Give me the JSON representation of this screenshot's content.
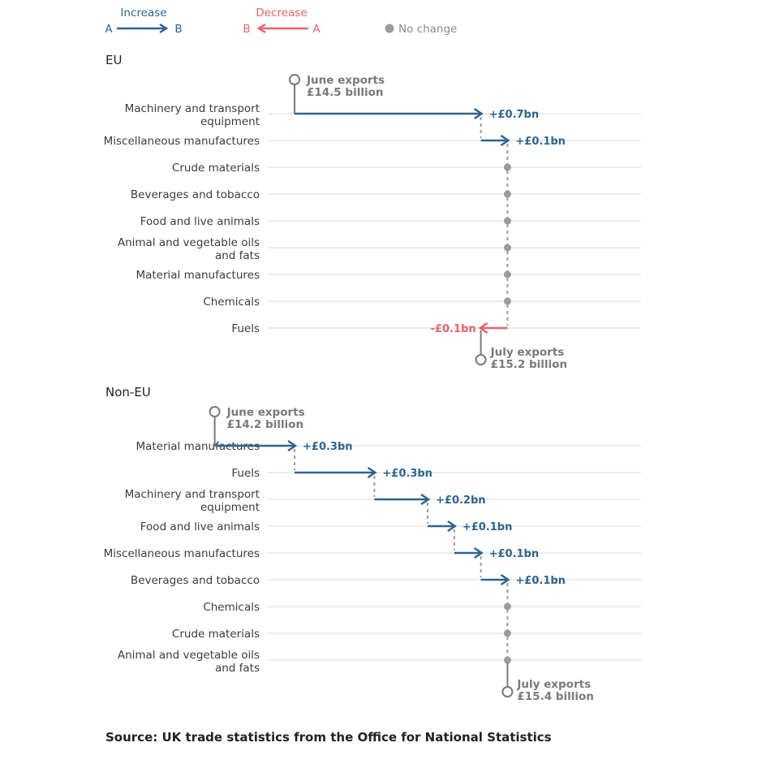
{
  "colors": {
    "increase": "#2e6590",
    "decrease": "#e8636c",
    "no_change": "#9b9b9b",
    "grid": "#d9d9d9",
    "connector": "#9b9b9b",
    "endpoint": "#7a7a7a"
  },
  "legend": {
    "increase": {
      "label": "Increase",
      "from": "A",
      "to": "B"
    },
    "decrease": {
      "label": "Decrease",
      "from": "B",
      "to": "A"
    },
    "no_change": {
      "label": "No change"
    }
  },
  "source": "Source: UK trade statistics from the Office for National Statistics",
  "chart_data": [
    {
      "type": "waterfall",
      "title": "EU",
      "x_range_bn": [
        13.0,
        17.5
      ],
      "start": {
        "line1": "June exports",
        "line2": "£14.5 billion",
        "value_bn": 14.5
      },
      "end": {
        "line1": "July exports",
        "line2": "£15.2 billion",
        "value_bn": 15.2
      },
      "rows": [
        {
          "label": [
            "Machinery and transport",
            "equipment"
          ],
          "change_bn": 0.7,
          "display": "+£0.7bn"
        },
        {
          "label": [
            "Miscellaneous manufactures"
          ],
          "change_bn": 0.1,
          "display": "+£0.1bn"
        },
        {
          "label": [
            "Crude materials"
          ],
          "change_bn": 0,
          "display": ""
        },
        {
          "label": [
            "Beverages and tobacco"
          ],
          "change_bn": 0,
          "display": ""
        },
        {
          "label": [
            "Food and live animals"
          ],
          "change_bn": 0,
          "display": ""
        },
        {
          "label": [
            "Animal and vegetable oils",
            "and fats"
          ],
          "change_bn": 0,
          "display": ""
        },
        {
          "label": [
            "Material manufactures"
          ],
          "change_bn": 0,
          "display": ""
        },
        {
          "label": [
            "Chemicals"
          ],
          "change_bn": 0,
          "display": ""
        },
        {
          "label": [
            "Fuels"
          ],
          "change_bn": -0.1,
          "display": "-£0.1bn"
        }
      ]
    },
    {
      "type": "waterfall",
      "title": "Non-EU",
      "x_range_bn": [
        13.0,
        17.5
      ],
      "start": {
        "line1": "June exports",
        "line2": "£14.2 billion",
        "value_bn": 14.2
      },
      "end": {
        "line1": "July exports",
        "line2": "£15.4 billion",
        "value_bn": 15.4
      },
      "rows": [
        {
          "label": [
            "Material manufactures"
          ],
          "change_bn": 0.3,
          "display": "+£0.3bn"
        },
        {
          "label": [
            "Fuels"
          ],
          "change_bn": 0.3,
          "display": "+£0.3bn"
        },
        {
          "label": [
            "Machinery and transport",
            "equipment"
          ],
          "change_bn": 0.2,
          "display": "+£0.2bn"
        },
        {
          "label": [
            "Food and live animals"
          ],
          "change_bn": 0.1,
          "display": "+£0.1bn"
        },
        {
          "label": [
            "Miscellaneous manufactures"
          ],
          "change_bn": 0.1,
          "display": "+£0.1bn"
        },
        {
          "label": [
            "Beverages and tobacco"
          ],
          "change_bn": 0.1,
          "display": "+£0.1bn"
        },
        {
          "label": [
            "Chemicals"
          ],
          "change_bn": 0,
          "display": ""
        },
        {
          "label": [
            "Crude materials"
          ],
          "change_bn": 0,
          "display": ""
        },
        {
          "label": [
            "Animal and vegetable oils",
            "and fats"
          ],
          "change_bn": 0,
          "display": ""
        }
      ]
    }
  ]
}
